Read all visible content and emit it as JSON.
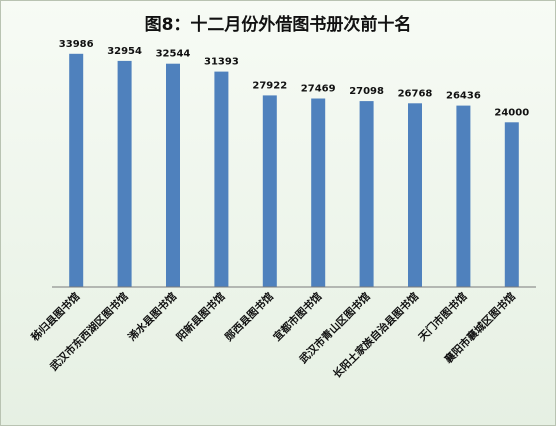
{
  "chart_data": {
    "type": "bar",
    "title": "图8：十二月份外借图书册次前十名",
    "categories": [
      "秭归县图书馆",
      "武汉市东西湖区图书馆",
      "浠水县图书馆",
      "阳新县图书馆",
      "郧西县图书馆",
      "宜都市图书馆",
      "武汉市青山区图书馆",
      "长阳土家族自治县图书馆",
      "天门市图书馆",
      "襄阳市襄城区图书馆"
    ],
    "values": [
      33986,
      32954,
      32544,
      31393,
      27922,
      27469,
      27098,
      26768,
      26436,
      24000
    ],
    "ylim": [
      0,
      36000
    ],
    "bar_color": "#4f81bd",
    "grid": false,
    "legend": false
  }
}
